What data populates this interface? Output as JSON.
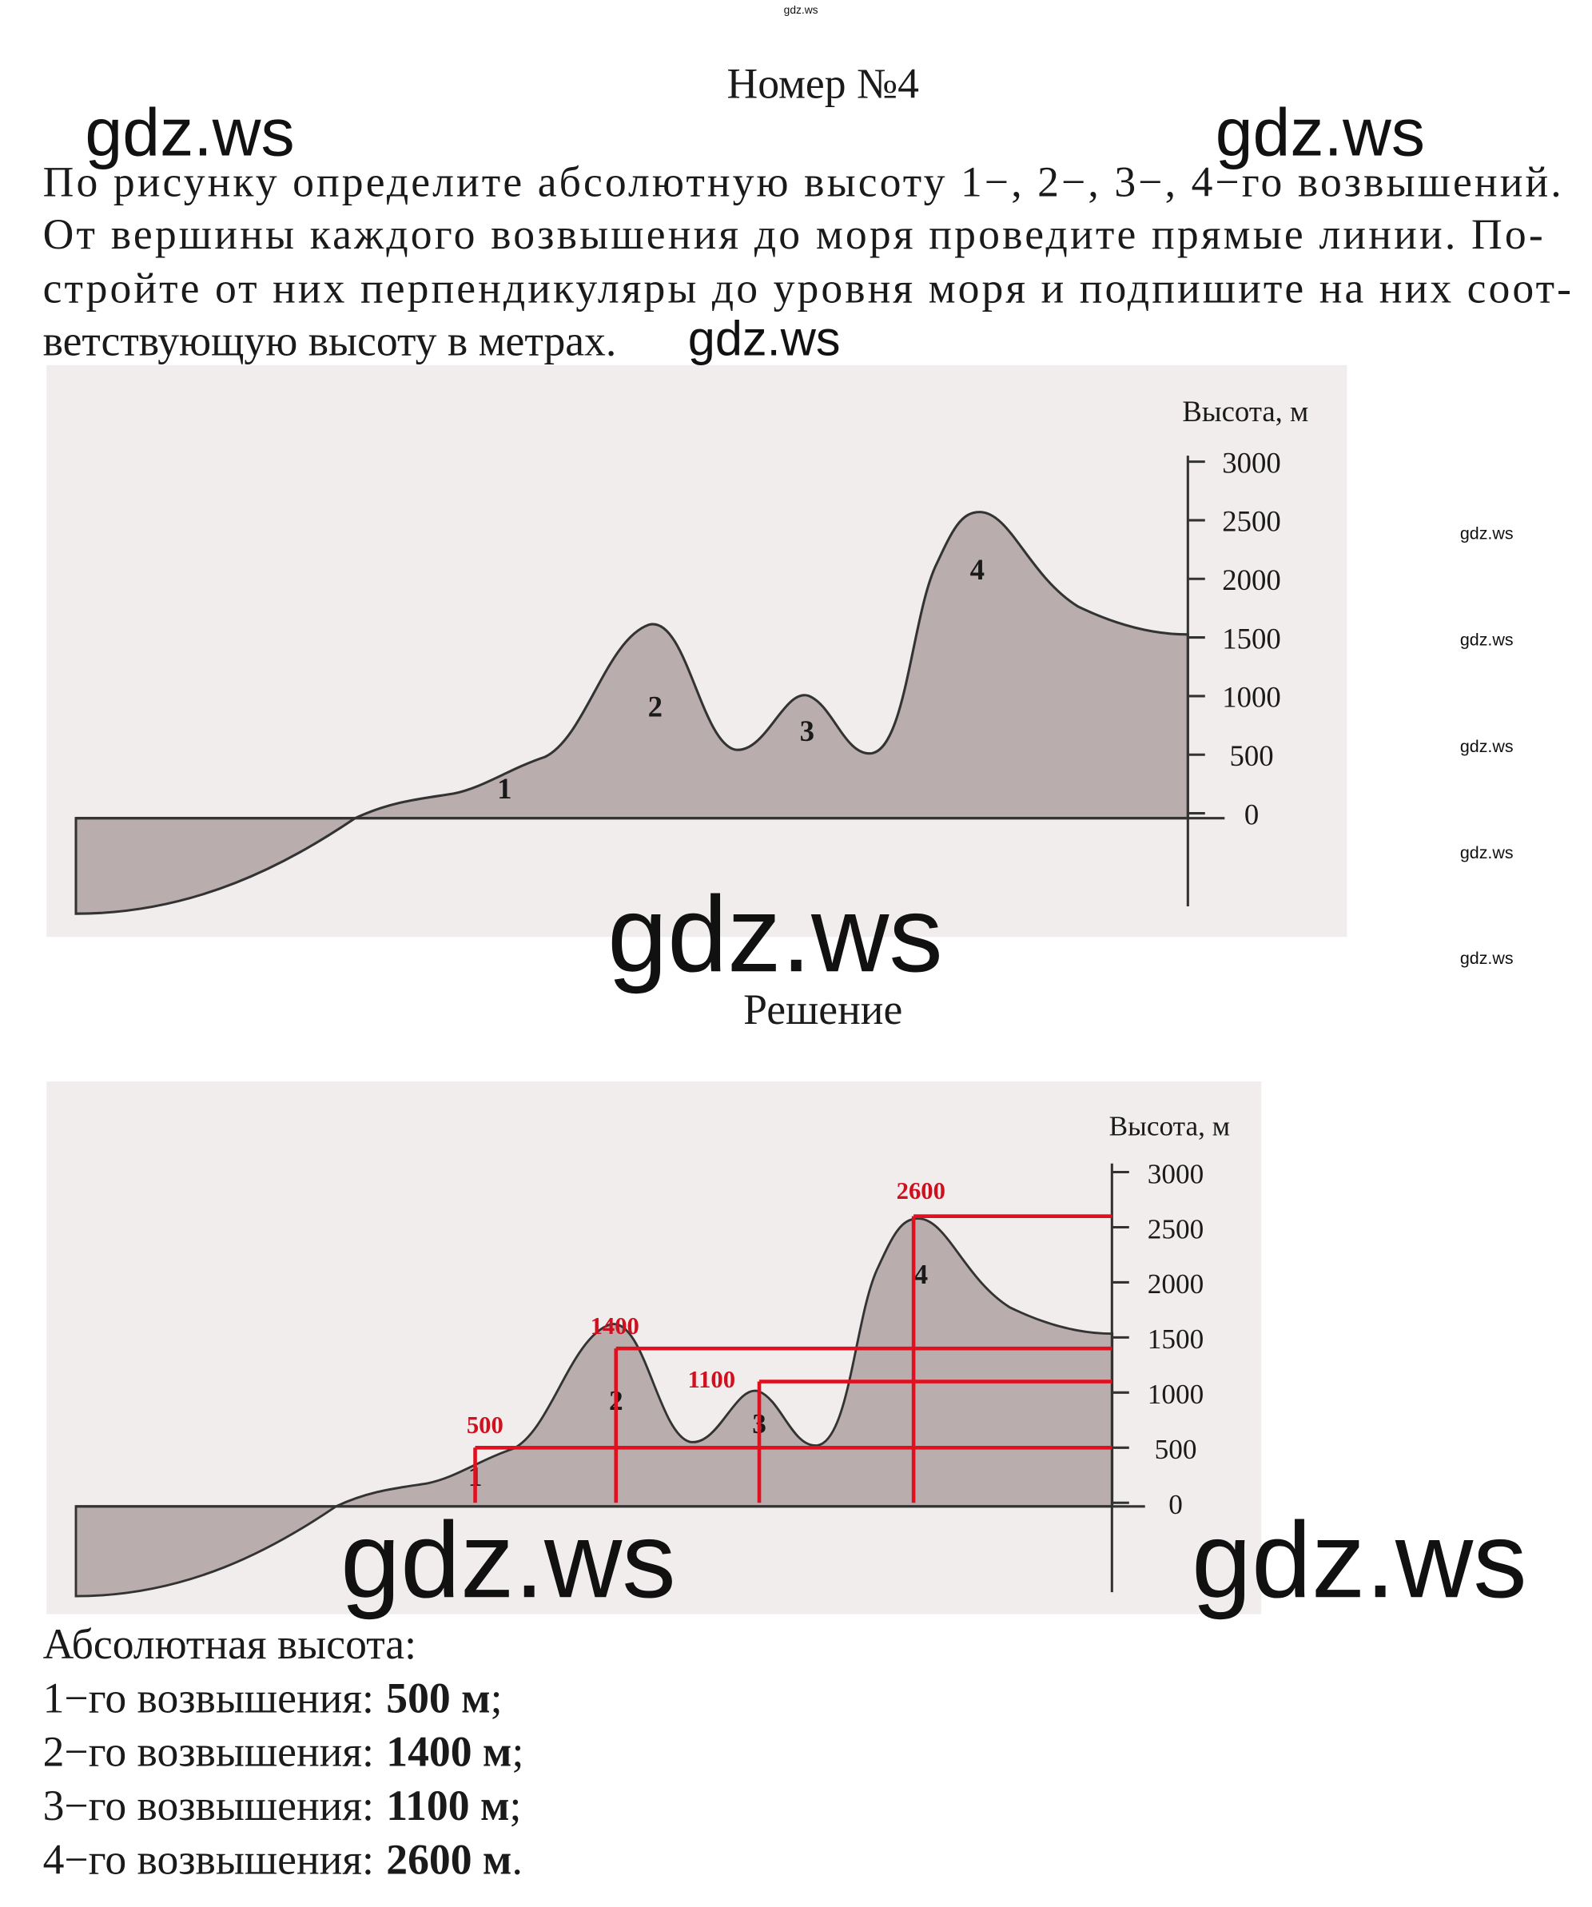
{
  "header": {
    "title": "Номер №4"
  },
  "task": {
    "lines": [
      "По рисунку определите абсолютную высоту 1−, 2−, 3−, 4−го возвышений.",
      "От вершины каждого возвышения до моря проведите прямые линии. По-",
      "стройте от них перпендикуляры до уровня моря и подпишите на них соот-",
      "ветствующую высоту в метрах."
    ]
  },
  "figure_task": {
    "axis_label": "Высота, м",
    "ticks": [
      3000,
      2500,
      2000,
      1500,
      1000,
      500,
      0
    ],
    "peaks": [
      "1",
      "2",
      "3",
      "4"
    ]
  },
  "solution_heading": "Решение",
  "figure_solution": {
    "axis_label": "Высота, м",
    "ticks": [
      3000,
      2500,
      2000,
      1500,
      1000,
      500,
      0
    ],
    "peaks": [
      "1",
      "2",
      "3",
      "4"
    ],
    "heights": [
      500,
      1400,
      1100,
      2600
    ]
  },
  "answer": {
    "heading": "Абсолютная высота:",
    "items": [
      {
        "label": "1−го возвышения:",
        "value": "500 м",
        "end": ";"
      },
      {
        "label": "2−го возвышения:",
        "value": "1400 м",
        "end": ";"
      },
      {
        "label": "3−го возвышения:",
        "value": "1100 м",
        "end": ";"
      },
      {
        "label": "4−го возвышения:",
        "value": "2600 м",
        "end": "."
      }
    ]
  },
  "watermarks": [
    "gdz.ws",
    "gdz.ws",
    "gdz.ws",
    "gdz.ws",
    "gdz.ws",
    "gdz.ws",
    "gdz.ws",
    "gdz.ws",
    "gdz.ws",
    "gdz.ws",
    "gdz.ws",
    "gdz.ws"
  ]
}
